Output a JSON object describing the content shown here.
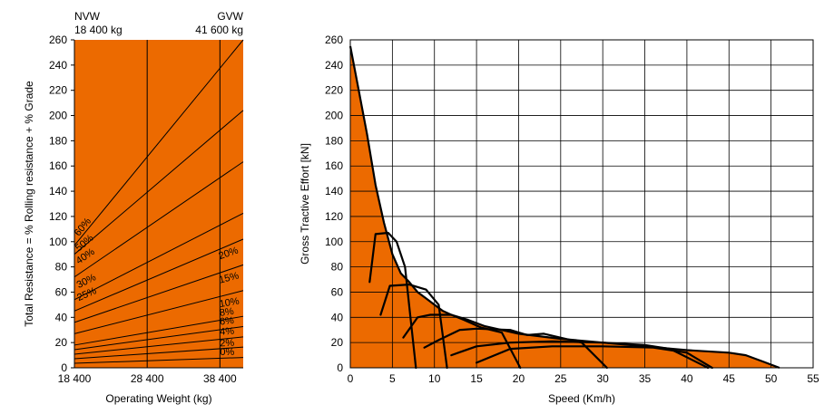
{
  "colors": {
    "fill": "#ec6a00",
    "line": "#000000",
    "background": "#ffffff"
  },
  "chart_data": [
    {
      "type": "line",
      "name": "rimpull-left",
      "top_labels": [
        {
          "label": "NVW",
          "value": "18 400 kg",
          "x": 18400
        },
        {
          "label": "GVW",
          "value": "41 600 kg",
          "x": 41600
        }
      ],
      "xlabel": "Operating Weight (kg)",
      "ylabel": "Total Resistance = % Rolling resistance + % Grade",
      "xlim": [
        18400,
        41600
      ],
      "ylim": [
        0,
        260
      ],
      "xticks": [
        {
          "value": 18400,
          "label": "18 400"
        },
        {
          "value": 28400,
          "label": "28 400"
        },
        {
          "value": 38400,
          "label": "38 400"
        }
      ],
      "yticks": [
        0,
        20,
        40,
        60,
        80,
        100,
        120,
        140,
        160,
        180,
        200,
        220,
        240,
        260
      ],
      "background_filled": true,
      "grade_lines": [
        {
          "label": "0%",
          "y_start": 0,
          "y_end": 0
        },
        {
          "label": "2%",
          "y_start": 3.6,
          "y_end": 8.2
        },
        {
          "label": "4%",
          "y_start": 7.2,
          "y_end": 16.4
        },
        {
          "label": "6%",
          "y_start": 10.8,
          "y_end": 24.5
        },
        {
          "label": "8%",
          "y_start": 14.4,
          "y_end": 32.7
        },
        {
          "label": "10%",
          "y_start": 18.0,
          "y_end": 40.8
        },
        {
          "label": "15%",
          "y_start": 27.0,
          "y_end": 61.2
        },
        {
          "label": "20%",
          "y_start": 36.0,
          "y_end": 81.6
        },
        {
          "label": "25%",
          "y_start": 45.0,
          "y_end": 102.0
        },
        {
          "label": "30%",
          "y_start": 54.0,
          "y_end": 122.5
        },
        {
          "label": "40%",
          "y_start": 72.0,
          "y_end": 163.3
        },
        {
          "label": "50%",
          "y_start": 90.0,
          "y_end": 204.1
        },
        {
          "label": "60%",
          "y_start": 97.0,
          "y_end": 260
        }
      ],
      "label_positions": [
        {
          "label": "0%",
          "x": 38400,
          "y": 10
        },
        {
          "label": "2%",
          "x": 38400,
          "y": 17
        },
        {
          "label": "4%",
          "x": 38400,
          "y": 26
        },
        {
          "label": "6%",
          "x": 38400,
          "y": 34
        },
        {
          "label": "8%",
          "x": 38400,
          "y": 41
        },
        {
          "label": "10%",
          "x": 38400,
          "y": 48
        },
        {
          "label": "15%",
          "x": 38400,
          "y": 67
        },
        {
          "label": "20%",
          "x": 38400,
          "y": 86
        },
        {
          "label": "25%",
          "x": 19000,
          "y": 53
        },
        {
          "label": "30%",
          "x": 19000,
          "y": 63
        },
        {
          "label": "40%",
          "x": 19000,
          "y": 82
        },
        {
          "label": "50%",
          "x": 19000,
          "y": 92
        },
        {
          "label": "60%",
          "x": 19000,
          "y": 104
        }
      ]
    },
    {
      "type": "line",
      "name": "tractive-effort",
      "xlabel": "Speed (Km/h)",
      "ylabel": "Gross Tractive Effort [kN]",
      "xlim": [
        0,
        55
      ],
      "ylim": [
        0,
        260
      ],
      "xticks": [
        0,
        5,
        10,
        15,
        20,
        25,
        30,
        35,
        40,
        45,
        50,
        55
      ],
      "yticks": [
        0,
        20,
        40,
        60,
        80,
        100,
        120,
        140,
        160,
        180,
        200,
        220,
        240,
        260
      ],
      "grid": true,
      "envelope": [
        [
          0,
          255
        ],
        [
          1,
          220
        ],
        [
          2,
          185
        ],
        [
          3,
          145
        ],
        [
          4,
          115
        ],
        [
          5,
          90
        ],
        [
          6,
          75
        ],
        [
          7,
          68
        ],
        [
          8,
          60
        ],
        [
          9,
          55
        ],
        [
          10,
          50
        ],
        [
          11,
          45
        ],
        [
          12,
          42
        ],
        [
          14,
          38
        ],
        [
          16,
          33
        ],
        [
          20,
          27
        ],
        [
          25,
          23
        ],
        [
          30,
          20
        ],
        [
          35,
          17
        ],
        [
          40,
          14
        ],
        [
          45,
          12
        ],
        [
          47,
          10
        ],
        [
          49,
          5
        ],
        [
          51,
          0
        ]
      ],
      "gear_curves": [
        [
          [
            2.3,
            68
          ],
          [
            3,
            106
          ],
          [
            4.5,
            107
          ],
          [
            5.5,
            100
          ],
          [
            6.5,
            80
          ],
          [
            7.8,
            0
          ]
        ],
        [
          [
            3.6,
            42
          ],
          [
            4.7,
            65
          ],
          [
            7,
            66
          ],
          [
            9,
            62
          ],
          [
            10.5,
            50
          ],
          [
            11.5,
            0
          ]
        ],
        [
          [
            6.3,
            24
          ],
          [
            8,
            40
          ],
          [
            9.5,
            42
          ],
          [
            12,
            42
          ],
          [
            13.5,
            38
          ],
          [
            15.5,
            32
          ],
          [
            18,
            28
          ],
          [
            20.2,
            0
          ]
        ],
        [
          [
            8.8,
            16
          ],
          [
            10.5,
            22
          ],
          [
            13,
            30
          ],
          [
            15,
            31
          ],
          [
            19,
            30
          ],
          [
            21,
            26
          ],
          [
            23,
            27
          ],
          [
            27.5,
            20
          ],
          [
            30.5,
            0
          ]
        ],
        [
          [
            12,
            10
          ],
          [
            15,
            17
          ],
          [
            19,
            20
          ],
          [
            24,
            21
          ],
          [
            30,
            20
          ],
          [
            35,
            18
          ],
          [
            38,
            15
          ],
          [
            42.5,
            0
          ]
        ],
        [
          [
            15,
            4
          ],
          [
            19,
            15
          ],
          [
            24,
            17
          ],
          [
            30,
            17
          ],
          [
            36,
            16
          ],
          [
            40,
            12
          ],
          [
            43,
            0
          ]
        ]
      ]
    }
  ]
}
